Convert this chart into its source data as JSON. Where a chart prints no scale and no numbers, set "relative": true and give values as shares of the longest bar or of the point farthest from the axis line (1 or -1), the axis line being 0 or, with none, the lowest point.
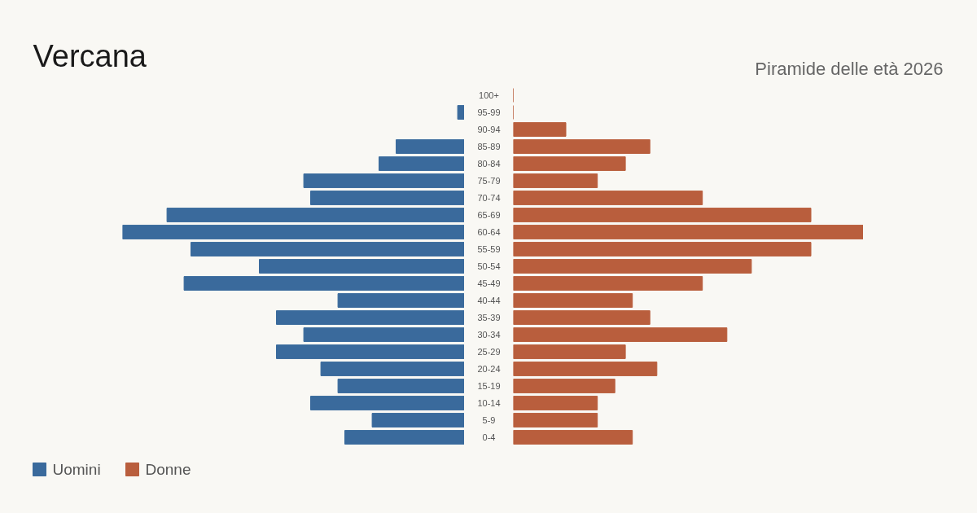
{
  "chart_data": [
    {
      "type": "bar",
      "title": "Vercana",
      "orientation": "horizontal",
      "relative": true,
      "legend": "bottom left",
      "categories": [
        "100+",
        "95-99",
        "90-94",
        "85-89",
        "80-84",
        "75-79",
        "70-74",
        "65-69",
        "60-64",
        "55-59",
        "50-54",
        "45-49",
        "40-44",
        "35-39",
        "30-34",
        "25-29",
        "20-24",
        "15-19",
        "10-14",
        "5-9",
        "0-4"
      ],
      "series": [
        {
          "name": "Uomini",
          "color": "#3a6a9c",
          "values": [
            0,
            -0.02,
            0,
            -0.2,
            -0.25,
            -0.47,
            -0.45,
            -0.87,
            -1.0,
            -0.8,
            -0.6,
            -0.82,
            -0.37,
            -0.55,
            -0.47,
            -0.55,
            -0.42,
            -0.37,
            -0.45,
            -0.27,
            -0.35
          ]
        }
      ]
    },
    {
      "type": "bar",
      "subtitle": "Piramide delle età 2026",
      "orientation": "horizontal",
      "relative": true,
      "legend": "bottom left",
      "tick_labels": false,
      "categories": [
        "100+",
        "95-99",
        "90-94",
        "85-89",
        "80-84",
        "75-79",
        "70-74",
        "65-69",
        "60-64",
        "55-59",
        "50-54",
        "45-49",
        "40-44",
        "35-39",
        "30-34",
        "25-29",
        "20-24",
        "15-19",
        "10-14",
        "5-9",
        "0-4"
      ],
      "series": [
        {
          "name": "Donne",
          "color": "#b95e3d",
          "values": [
            0,
            0,
            0.15,
            0.39,
            0.32,
            0.24,
            0.54,
            0.85,
            1.0,
            0.85,
            0.68,
            0.54,
            0.34,
            0.39,
            0.61,
            0.32,
            0.41,
            0.29,
            0.24,
            0.24,
            0.34
          ]
        }
      ]
    }
  ]
}
